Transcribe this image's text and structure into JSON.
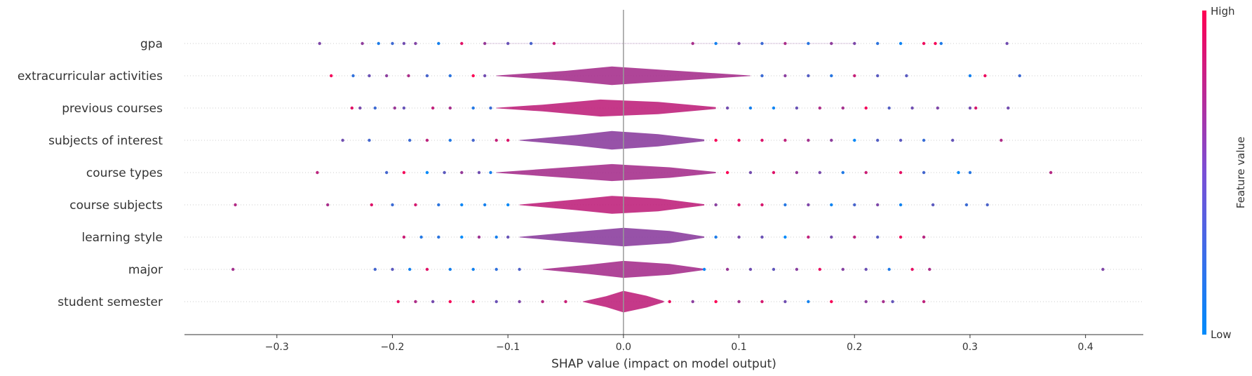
{
  "chart_data": {
    "type": "violin-summary",
    "title": "",
    "xlabel": "SHAP value (impact on model output)",
    "ylabel": "",
    "xlim": [
      -0.38,
      0.45
    ],
    "xticks": [
      -0.3,
      -0.2,
      -0.1,
      0.0,
      0.1,
      0.2,
      0.3,
      0.4
    ],
    "xtick_labels": [
      "−0.3",
      "−0.2",
      "−0.1",
      "0.0",
      "0.1",
      "0.2",
      "0.3",
      "0.4"
    ],
    "zero_line": 0.0,
    "colorbar": {
      "label": "Feature value",
      "high_label": "High",
      "low_label": "Low",
      "high_color": "#ff0052",
      "low_color": "#008bfb"
    },
    "features": [
      {
        "name": "gpa",
        "range": [
          -0.263,
          0.332
        ],
        "density": [
          [
            -0.12,
            0.004
          ],
          [
            0,
            0.004
          ],
          [
            0.2,
            0.004
          ]
        ],
        "points": [
          -0.263,
          -0.226,
          -0.212,
          -0.2,
          -0.19,
          -0.18,
          -0.16,
          -0.14,
          -0.12,
          -0.1,
          -0.08,
          -0.06,
          0.06,
          0.08,
          0.1,
          0.12,
          0.14,
          0.16,
          0.18,
          0.2,
          0.22,
          0.24,
          0.26,
          0.27,
          0.275,
          0.332
        ]
      },
      {
        "name": "extracurricular activities",
        "range": [
          -0.253,
          0.343
        ],
        "density": [
          [
            -0.11,
            0.02
          ],
          [
            -0.05,
            0.32
          ],
          [
            -0.01,
            0.6
          ],
          [
            0.04,
            0.35
          ],
          [
            0.11,
            0.02
          ]
        ],
        "points": [
          -0.253,
          -0.234,
          -0.22,
          -0.205,
          -0.186,
          -0.17,
          -0.15,
          -0.13,
          -0.12,
          0.12,
          0.14,
          0.16,
          0.18,
          0.2,
          0.22,
          0.245,
          0.3,
          0.313,
          0.343
        ]
      },
      {
        "name": "previous courses",
        "range": [
          -0.235,
          0.333
        ],
        "density": [
          [
            -0.11,
            0.02
          ],
          [
            -0.07,
            0.22
          ],
          [
            -0.02,
            0.55
          ],
          [
            0.03,
            0.4
          ],
          [
            0.08,
            0.06
          ]
        ],
        "points": [
          -0.235,
          -0.228,
          -0.215,
          -0.198,
          -0.19,
          -0.165,
          -0.15,
          -0.13,
          -0.115,
          0.09,
          0.11,
          0.13,
          0.15,
          0.17,
          0.19,
          0.21,
          0.23,
          0.25,
          0.272,
          0.3,
          0.305,
          0.333
        ]
      },
      {
        "name": "subjects of interest",
        "range": [
          -0.243,
          0.327
        ],
        "density": [
          [
            -0.09,
            0.02
          ],
          [
            -0.04,
            0.35
          ],
          [
            -0.01,
            0.6
          ],
          [
            0.03,
            0.4
          ],
          [
            0.07,
            0.06
          ]
        ],
        "points": [
          -0.243,
          -0.22,
          -0.185,
          -0.17,
          -0.15,
          -0.13,
          -0.11,
          -0.1,
          0.08,
          0.1,
          0.12,
          0.14,
          0.16,
          0.18,
          0.2,
          0.22,
          0.24,
          0.26,
          0.285,
          0.327
        ]
      },
      {
        "name": "course types",
        "range": [
          -0.265,
          0.37
        ],
        "density": [
          [
            -0.11,
            0.02
          ],
          [
            -0.06,
            0.28
          ],
          [
            -0.01,
            0.55
          ],
          [
            0.04,
            0.34
          ],
          [
            0.08,
            0.04
          ]
        ],
        "points": [
          -0.265,
          -0.205,
          -0.19,
          -0.17,
          -0.155,
          -0.14,
          -0.125,
          -0.115,
          0.09,
          0.11,
          0.13,
          0.15,
          0.17,
          0.19,
          0.21,
          0.24,
          0.26,
          0.29,
          0.3,
          0.37
        ]
      },
      {
        "name": "course subjects",
        "range": [
          -0.336,
          0.315
        ],
        "density": [
          [
            -0.09,
            0.02
          ],
          [
            -0.04,
            0.35
          ],
          [
            -0.01,
            0.58
          ],
          [
            0.03,
            0.42
          ],
          [
            0.07,
            0.04
          ]
        ],
        "points": [
          -0.336,
          -0.256,
          -0.218,
          -0.2,
          -0.18,
          -0.16,
          -0.14,
          -0.12,
          -0.1,
          0.08,
          0.1,
          0.12,
          0.14,
          0.16,
          0.18,
          0.2,
          0.22,
          0.24,
          0.268,
          0.297,
          0.315
        ]
      },
      {
        "name": "learning style",
        "range": [
          -0.19,
          0.26
        ],
        "density": [
          [
            -0.09,
            0.02
          ],
          [
            -0.05,
            0.28
          ],
          [
            0.0,
            0.6
          ],
          [
            0.04,
            0.4
          ],
          [
            0.07,
            0.04
          ]
        ],
        "points": [
          -0.19,
          -0.175,
          -0.16,
          -0.14,
          -0.125,
          -0.11,
          -0.1,
          0.08,
          0.1,
          0.12,
          0.14,
          0.16,
          0.18,
          0.2,
          0.22,
          0.24,
          0.26
        ]
      },
      {
        "name": "major",
        "range": [
          -0.338,
          0.415
        ],
        "density": [
          [
            -0.07,
            0.02
          ],
          [
            -0.03,
            0.3
          ],
          [
            0.0,
            0.55
          ],
          [
            0.04,
            0.35
          ],
          [
            0.07,
            0.04
          ]
        ],
        "points": [
          -0.338,
          -0.215,
          -0.2,
          -0.185,
          -0.17,
          -0.15,
          -0.13,
          -0.11,
          -0.09,
          0.07,
          0.09,
          0.11,
          0.13,
          0.15,
          0.17,
          0.19,
          0.21,
          0.23,
          0.25,
          0.265,
          0.415
        ]
      },
      {
        "name": "student semester",
        "range": [
          -0.195,
          0.26
        ],
        "density": [
          [
            -0.035,
            0.02
          ],
          [
            -0.015,
            0.35
          ],
          [
            0.0,
            0.7
          ],
          [
            0.02,
            0.38
          ],
          [
            0.035,
            0.04
          ]
        ],
        "points": [
          -0.195,
          -0.18,
          -0.165,
          -0.15,
          -0.13,
          -0.11,
          -0.09,
          -0.07,
          -0.05,
          0.04,
          0.06,
          0.08,
          0.1,
          0.12,
          0.14,
          0.16,
          0.18,
          0.21,
          0.225,
          0.233,
          0.26
        ]
      }
    ]
  }
}
